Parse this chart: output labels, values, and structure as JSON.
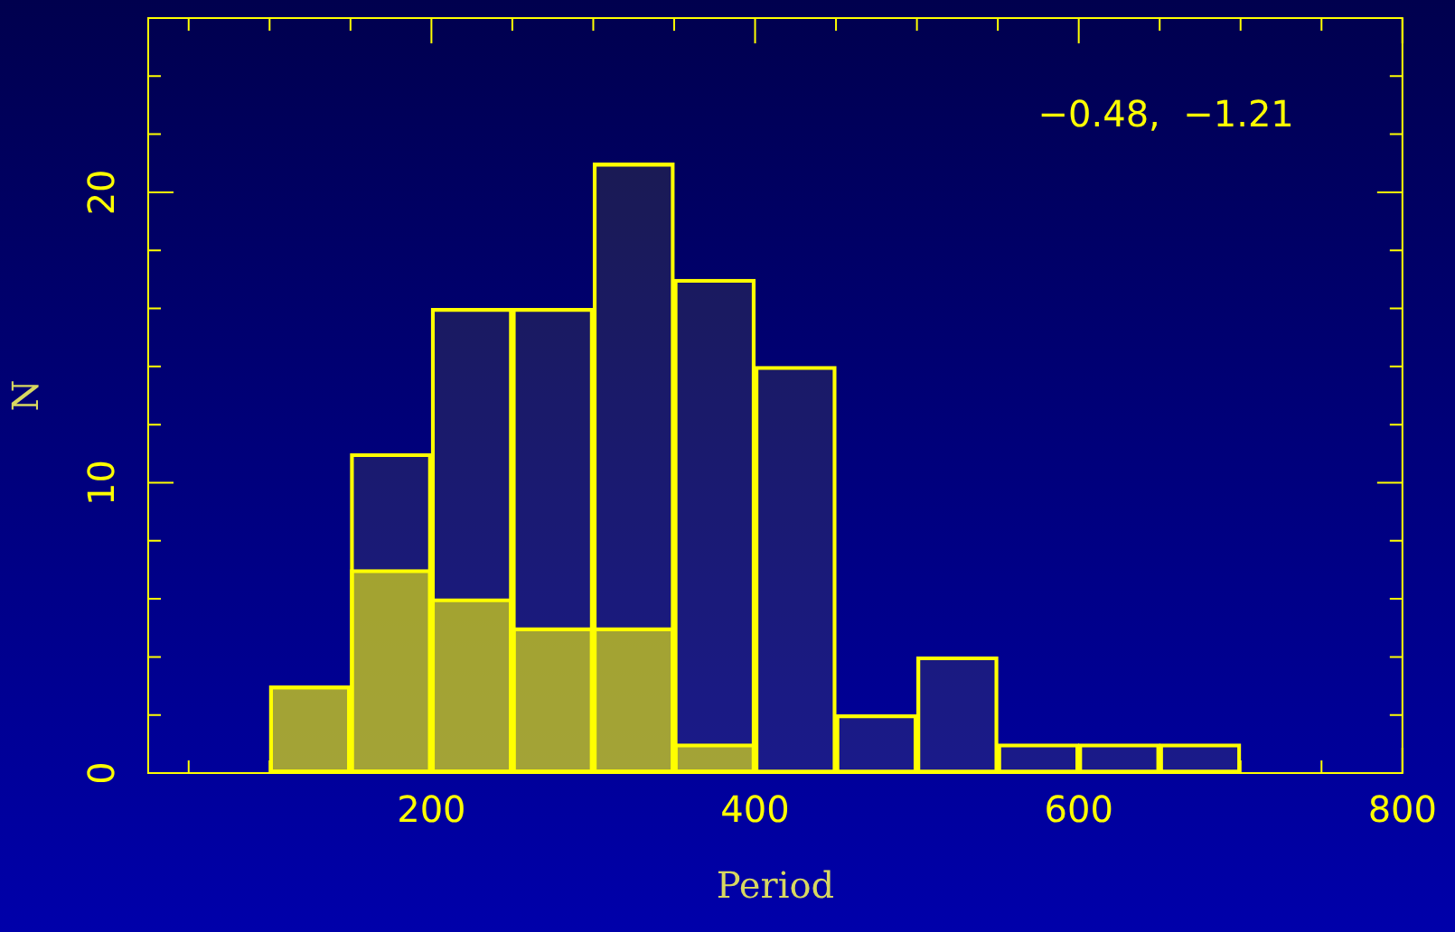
{
  "chart_data": {
    "type": "bar",
    "xlabel": "Period",
    "ylabel": "N",
    "x": [
      125,
      175,
      225,
      275,
      325,
      375,
      425,
      475,
      525,
      575,
      625,
      675
    ],
    "series": [
      {
        "color": "#ffff00",
        "values": [
          3,
          11,
          16,
          16,
          21,
          17,
          14,
          2,
          4,
          1,
          1,
          1
        ]
      },
      {
        "color": "#ffff00",
        "values": [
          3,
          7,
          6,
          5,
          5,
          1,
          0,
          0,
          0,
          0,
          0,
          0
        ]
      }
    ],
    "xlim": [
      25,
      800
    ],
    "ylim": [
      0,
      26
    ],
    "xticks": [
      {
        "value": 50,
        "label": null
      },
      {
        "value": 100,
        "label": null
      },
      {
        "value": 150,
        "label": null
      },
      200,
      {
        "value": 250,
        "label": null
      },
      {
        "value": 300,
        "label": null
      },
      {
        "value": 350,
        "label": null
      },
      400,
      {
        "value": 450,
        "label": null
      },
      {
        "value": 500,
        "label": null
      },
      {
        "value": 550,
        "label": null
      },
      600,
      {
        "value": 650,
        "label": null
      },
      {
        "value": 700,
        "label": null
      },
      {
        "value": 750,
        "label": null
      },
      800
    ],
    "yticks": [
      0,
      {
        "value": 2,
        "label": null
      },
      {
        "value": 4,
        "label": null
      },
      {
        "value": 6,
        "label": null
      },
      {
        "value": 8,
        "label": null
      },
      10,
      {
        "value": 12,
        "label": null
      },
      {
        "value": 14,
        "label": null
      },
      {
        "value": 16,
        "label": null
      },
      {
        "value": 18,
        "label": null
      },
      20,
      {
        "value": 22,
        "label": null
      },
      {
        "value": 24,
        "label": null
      },
      {
        "value": 26,
        "label": null
      }
    ],
    "annotations": [
      "−0.48,  −1.21"
    ],
    "grid": false,
    "legend": false
  }
}
